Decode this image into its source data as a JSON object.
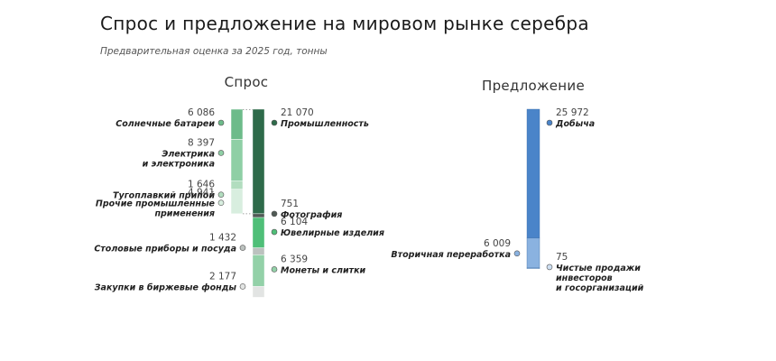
{
  "title": "Спрос и предложение на мировом рынке серебра",
  "subtitle": "Предварительная оценка за 2025 год, тонны",
  "chart_data": {
    "type": "bar",
    "title": "Спрос и предложение на мировом рынке серебра",
    "subtitle": "Предварительная оценка за 2025 год, тонны",
    "unit": "тонны",
    "demand": {
      "heading": "Спрос",
      "segments": [
        {
          "name": "Промышленность",
          "display": "21 070",
          "value": 21070,
          "color": "#2e6b4a",
          "breakdown": [
            {
              "name": "Солнечные батареи",
              "display": "6 086",
              "value": 6086,
              "color": "#6dbb8a"
            },
            {
              "name": "Электрика и электроника",
              "display": "8 397",
              "value": 8397,
              "color": "#8fcfa5"
            },
            {
              "name": "Тугоплавкий припой",
              "display": "1 646",
              "value": 1646,
              "color": "#b2ddbf"
            },
            {
              "name": "Прочие промышленные применения",
              "display": "4 941",
              "value": 4941,
              "color": "#d8eedf"
            }
          ]
        },
        {
          "name": "Фотография",
          "display": "751",
          "value": 751,
          "color": "#505a55"
        },
        {
          "name": "Ювелирные изделия",
          "display": "6 104",
          "value": 6104,
          "color": "#4fbf78"
        },
        {
          "name": "Столовые приборы и посуда",
          "display": "1 432",
          "value": 1432,
          "color": "#bcc2bf"
        },
        {
          "name": "Монеты и слитки",
          "display": "6 359",
          "value": 6359,
          "color": "#93d1a8"
        },
        {
          "name": "Закупки в биржевые фонды",
          "display": "2 177",
          "value": 2177,
          "color": "#e2e4e3"
        }
      ]
    },
    "supply": {
      "heading": "Предложение",
      "segments": [
        {
          "name": "Добыча",
          "display": "25 972",
          "value": 25972,
          "color": "#4a84c9"
        },
        {
          "name": "Вторичная переработка",
          "display": "6 009",
          "value": 6009,
          "color": "#8ab2e0"
        },
        {
          "name": "Чистые продажи инвесторов и госорганизаций",
          "display": "75",
          "value": 75,
          "color": "#cfe0f3"
        }
      ]
    }
  }
}
